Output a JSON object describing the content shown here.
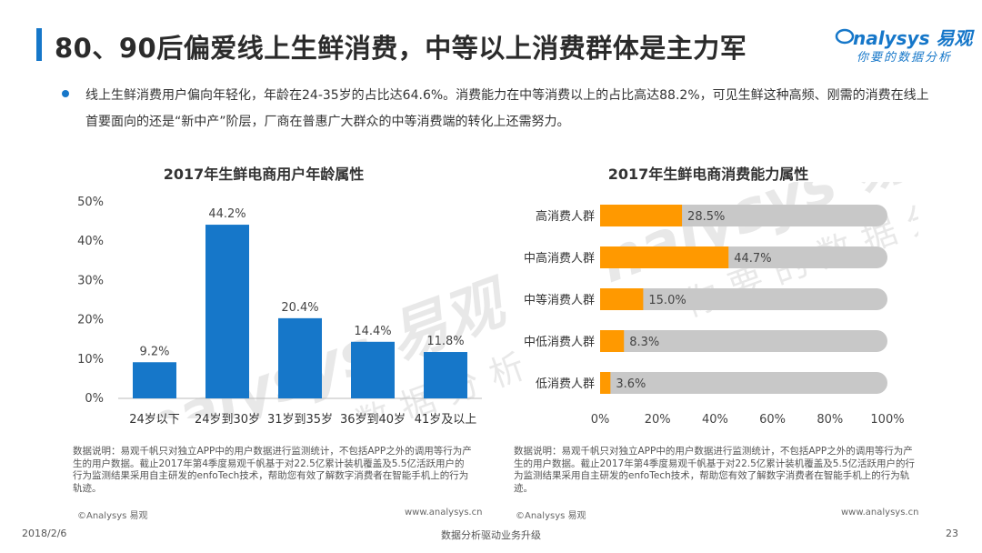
{
  "header": {
    "title": "80、90后偏爱线上生鲜消费，中等以上消费群体是主力军",
    "logo_main": "nalysys 易观",
    "logo_sub": "你要的数据分析"
  },
  "summary": "线上生鲜消费用户偏向年轻化，年龄在24-35岁的占比达64.6%。消费能力在中等消费以上的占比高达88.2%，可见生鲜这种高频、刚需的消费在线上首要面向的还是“新中产”阶层，厂商在普惠广大群众的中等消费端的转化上还需努力。",
  "watermark": {
    "line1": "nalysys 易观",
    "line2": "你要的数据分析"
  },
  "chart_data": [
    {
      "type": "bar",
      "title": "2017年生鲜电商用户年龄属性",
      "categories": [
        "24岁以下",
        "24岁到30岁",
        "31岁到35岁",
        "36岁到40岁",
        "41岁及以上"
      ],
      "values": [
        9.2,
        44.2,
        20.4,
        14.4,
        11.8
      ],
      "data_labels": [
        "9.2%",
        "44.2%",
        "20.4%",
        "14.4%",
        "11.8%"
      ],
      "ylim": [
        0,
        50
      ],
      "yticks": [
        "0%",
        "10%",
        "20%",
        "30%",
        "40%",
        "50%"
      ],
      "color": "#1677c9",
      "grid": false
    },
    {
      "type": "bar",
      "orientation": "horizontal",
      "title": "2017年生鲜电商消费能力属性",
      "categories": [
        "高消费人群",
        "中高消费人群",
        "中等消费人群",
        "中低消费人群",
        "低消费人群"
      ],
      "values": [
        28.5,
        44.7,
        15.0,
        8.3,
        3.6
      ],
      "data_labels": [
        "28.5%",
        "44.7%",
        "15.0%",
        "8.3%",
        "3.6%"
      ],
      "xlim": [
        0,
        100
      ],
      "xticks": [
        "0%",
        "20%",
        "40%",
        "60%",
        "80%",
        "100%"
      ],
      "color": "#ff9900",
      "track_color": "#c8c8c8",
      "grid": false
    }
  ],
  "notes": {
    "left": "数据说明：易观千帆只对独立APP中的用户数据进行监测统计，不包括APP之外的调用等行为产生的用户数据。截止2017年第4季度易观千帆基于对22.5亿累计装机覆盖及5.5亿活跃用户的行为监测结果采用自主研发的enfoTech技术，帮助您有效了解数字消费者在智能手机上的行为轨迹。",
    "right": "数据说明：易观千帆只对独立APP中的用户数据进行监测统计，不包括APP之外的调用等行为产生的用户数据。截止2017年第4季度易观千帆基于对22.5亿累计装机覆盖及5.5亿活跃用户的行为监测结果采用自主研发的enfoTech技术，帮助您有效了解数字消费者在智能手机上的行为轨迹。",
    "copyright": "©Analysys 易观",
    "url": "www.analysys.cn"
  },
  "footer": {
    "date": "2018/2/6",
    "center": "数据分析驱动业务升级",
    "page": "23"
  }
}
